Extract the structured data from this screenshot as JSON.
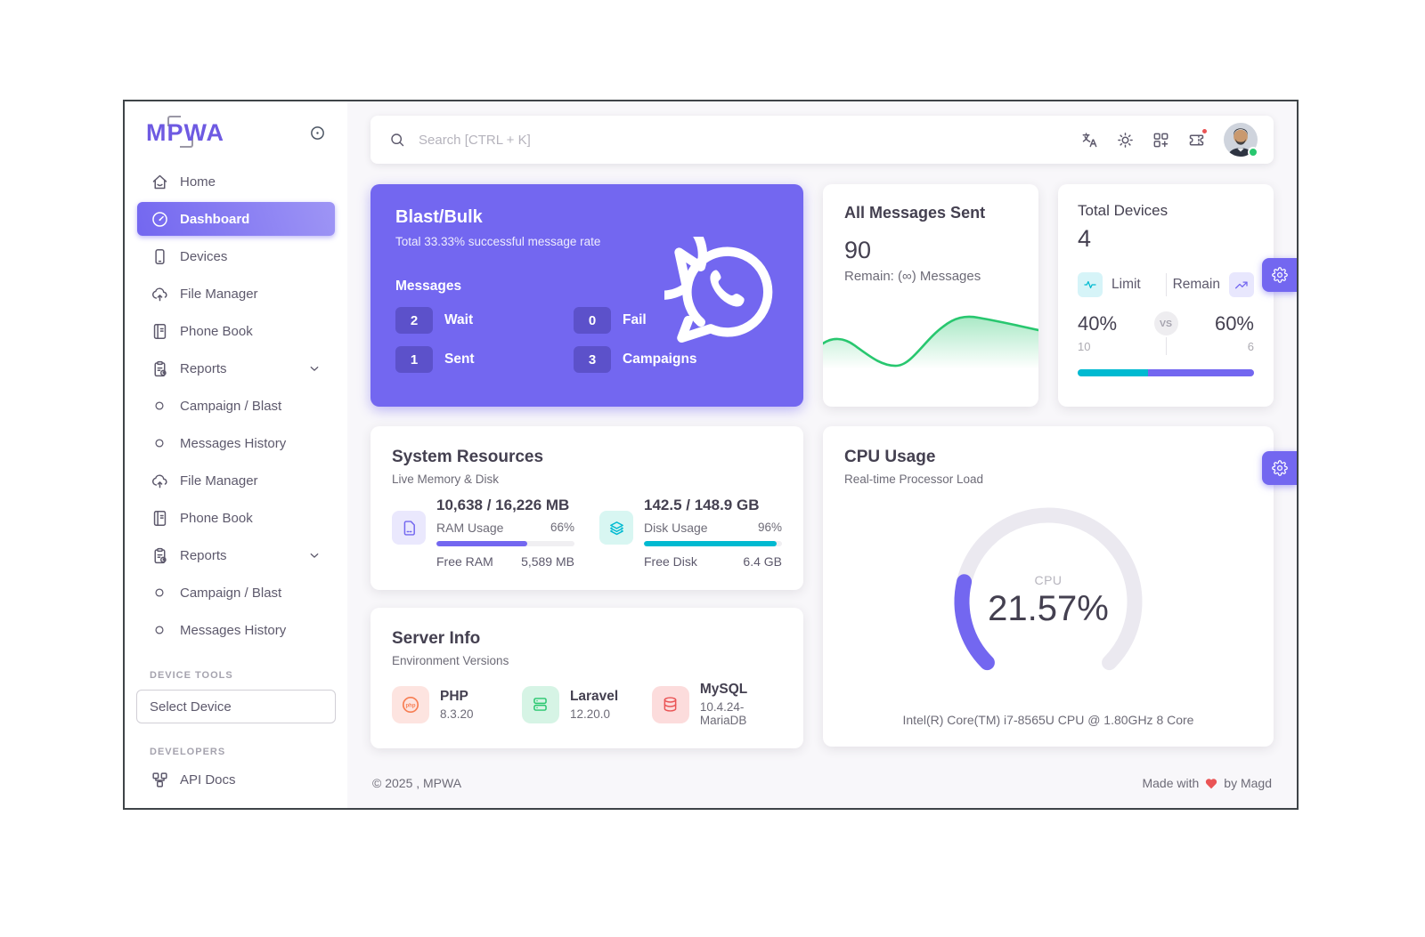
{
  "app": {
    "logo": "MPWA",
    "search_placeholder": "Search [CTRL + K]"
  },
  "sidebar": {
    "items": [
      {
        "label": "Home"
      },
      {
        "label": "Dashboard",
        "active": true
      },
      {
        "label": "Devices"
      },
      {
        "label": "File Manager"
      },
      {
        "label": "Phone Book"
      },
      {
        "label": "Reports"
      },
      {
        "label": "Campaign / Blast"
      },
      {
        "label": "Messages History"
      },
      {
        "label": "File Manager"
      },
      {
        "label": "Phone Book"
      },
      {
        "label": "Reports"
      },
      {
        "label": "Campaign / Blast"
      },
      {
        "label": "Messages History"
      }
    ],
    "sections": {
      "device_tools": "DEVICE TOOLS",
      "developers": "DEVELOPERS"
    },
    "select_device": "Select Device",
    "api_docs": "API Docs"
  },
  "blast": {
    "title": "Blast/Bulk",
    "subtitle": "Total 33.33% successful message rate",
    "messages_label": "Messages",
    "stats": [
      {
        "value": "2",
        "label": "Wait"
      },
      {
        "value": "0",
        "label": "Fail"
      },
      {
        "value": "1",
        "label": "Sent"
      },
      {
        "value": "3",
        "label": "Campaigns"
      }
    ]
  },
  "all_messages": {
    "title": "All Messages Sent",
    "value": "90",
    "remain": "Remain: (∞) Messages"
  },
  "total_devices": {
    "title": "Total Devices",
    "value": "4",
    "limit_label": "Limit",
    "remain_label": "Remain",
    "vs_label": "VS",
    "limit_pct": "40%",
    "remain_pct": "60%",
    "limit_pct_num": 40,
    "remain_pct_num": 60,
    "limit_count": "10",
    "remain_count": "6"
  },
  "system_resources": {
    "title": "System Resources",
    "subtitle": "Live Memory & Disk",
    "ram": {
      "total": "10,638 / 16,226 MB",
      "usage_label": "RAM Usage",
      "usage_pct": "66%",
      "usage_pct_num": 66,
      "free_label": "Free RAM",
      "free_value": "5,589 MB"
    },
    "disk": {
      "total": "142.5 / 148.9 GB",
      "usage_label": "Disk Usage",
      "usage_pct": "96%",
      "usage_pct_num": 96,
      "free_label": "Free Disk",
      "free_value": "6.4 GB"
    }
  },
  "server_info": {
    "title": "Server Info",
    "subtitle": "Environment Versions",
    "items": [
      {
        "name": "PHP",
        "version": "8.3.20"
      },
      {
        "name": "Laravel",
        "version": "12.20.0"
      },
      {
        "name": "MySQL",
        "version": "10.4.24-MariaDB"
      }
    ]
  },
  "cpu": {
    "title": "CPU Usage",
    "subtitle": "Real-time Processor Load",
    "gauge_label": "CPU",
    "gauge_value": "21.57%",
    "processor": "Intel(R) Core(TM) i7-8565U CPU @ 1.80GHz 8 Core"
  },
  "footer": {
    "copyright": "© 2025 , MPWA",
    "made_with": "Made with",
    "credit": "by Magd"
  },
  "colors": {
    "primary": "#7367f0",
    "teal": "#00bad1",
    "green": "#28c76f",
    "red": "#ea5455"
  },
  "chart_data": [
    {
      "type": "area",
      "title": "All Messages Sent trend",
      "x": [
        0,
        1,
        2,
        3,
        4,
        5,
        6
      ],
      "values": [
        52,
        48,
        30,
        34,
        75,
        70,
        62
      ],
      "color": "#28c76f",
      "grid": false,
      "legend_position": "none"
    },
    {
      "type": "gauge",
      "title": "CPU Usage",
      "value": 21.57,
      "min": 0,
      "max": 100,
      "color": "#7367f0"
    },
    {
      "type": "bar",
      "title": "Device Limit vs Remain (%)",
      "categories": [
        "Limit",
        "Remain"
      ],
      "values": [
        40,
        60
      ]
    },
    {
      "type": "bar",
      "title": "Resource usage (%)",
      "categories": [
        "RAM",
        "Disk"
      ],
      "values": [
        66,
        96
      ]
    }
  ]
}
